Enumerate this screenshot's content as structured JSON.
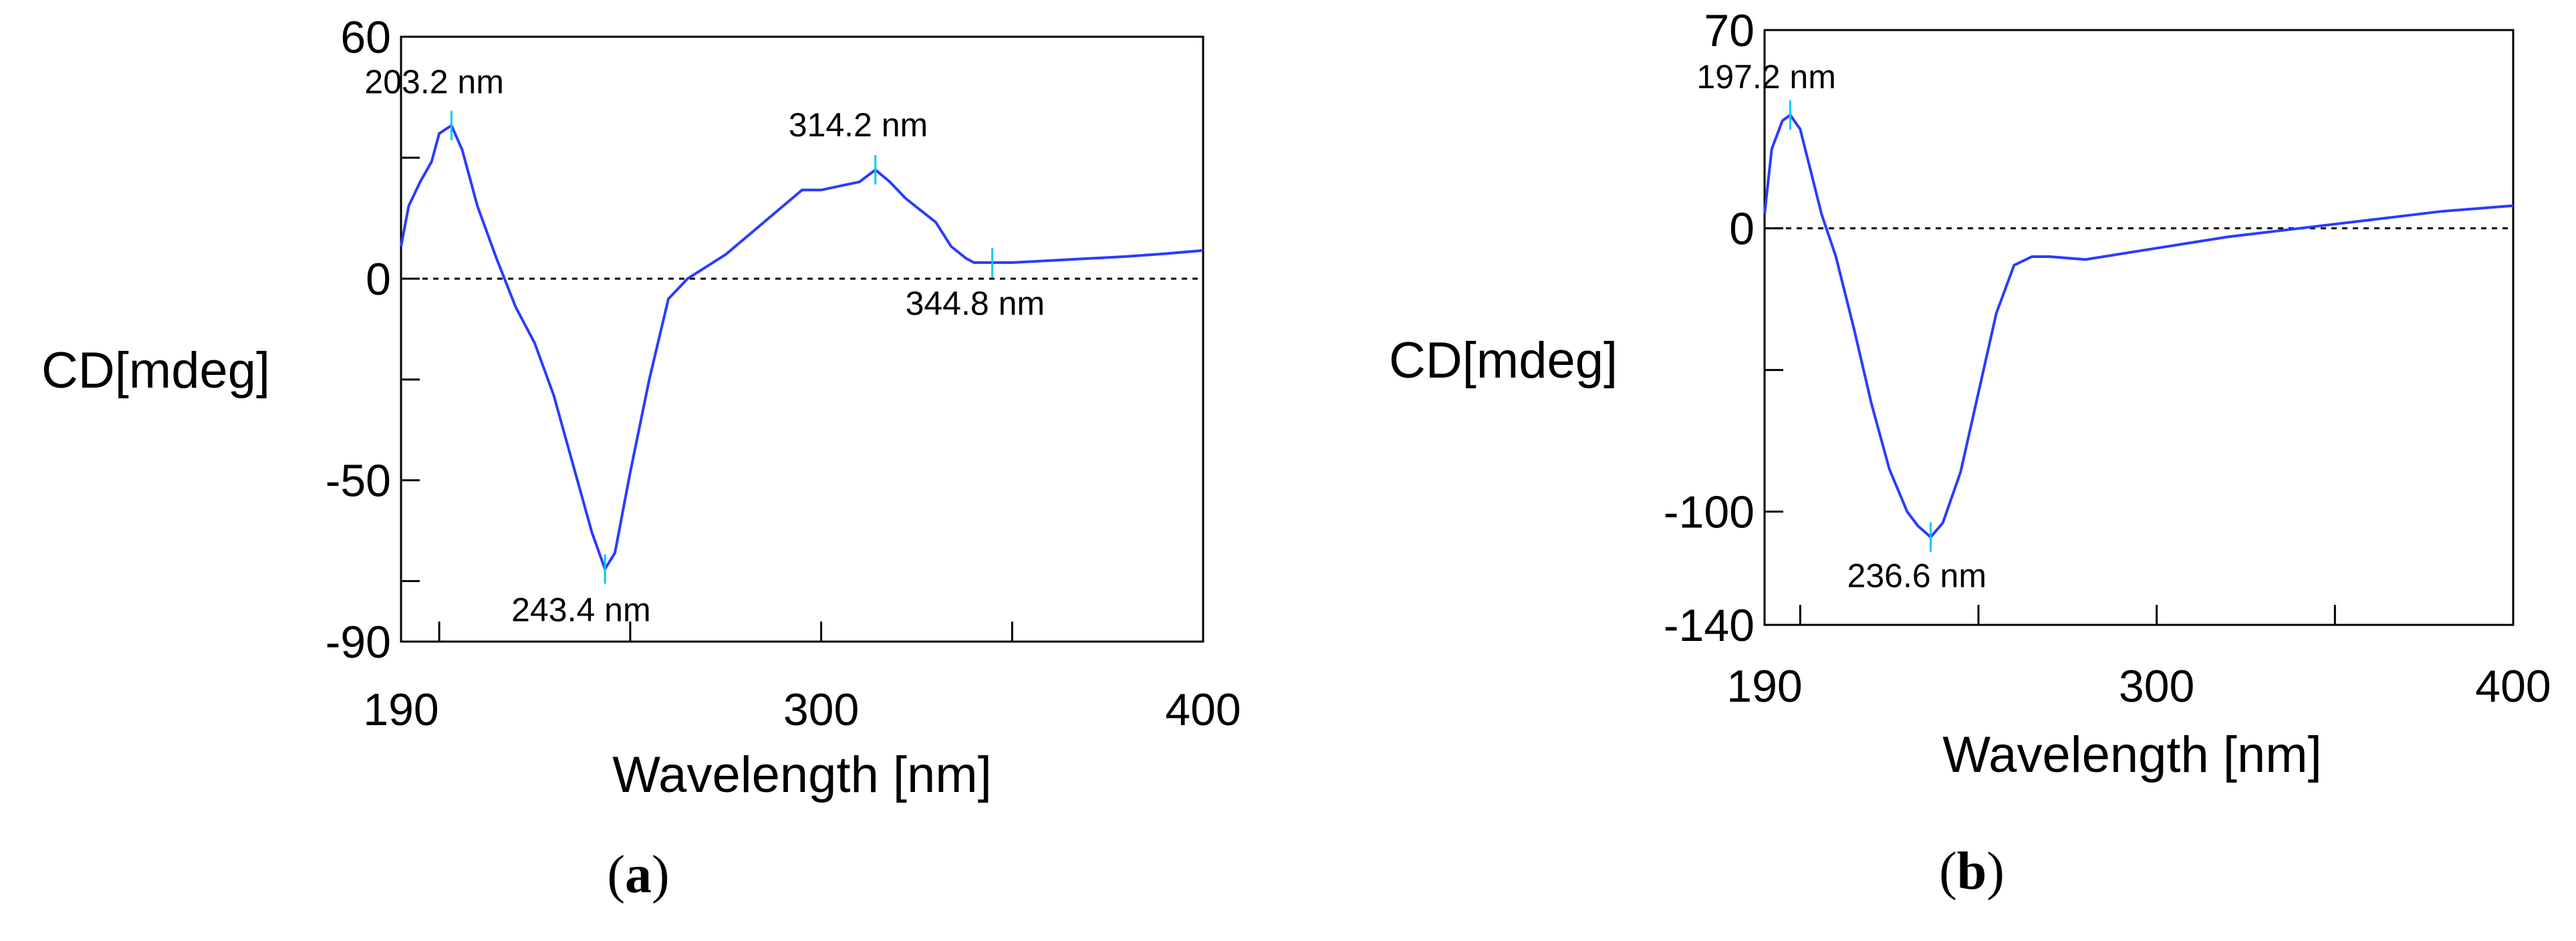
{
  "colors": {
    "curve": "#2b3bff",
    "marker": "#00c8ff",
    "axis": "#000000",
    "zero_line": "#000000"
  },
  "panels": [
    {
      "label": "(a)",
      "label_letter": "a",
      "ylabel": "CD[mdeg]",
      "xlabel": "Wavelength [nm]"
    },
    {
      "label": "(b)",
      "label_letter": "b",
      "ylabel": "CD[mdeg]",
      "xlabel": "Wavelength [nm]"
    }
  ],
  "chart_data": [
    {
      "type": "line",
      "title": "",
      "xlabel": "Wavelength [nm]",
      "ylabel": "CD[mdeg]",
      "xlim": [
        190,
        400
      ],
      "ylim": [
        -90,
        60
      ],
      "x_tick_labels": [
        "190",
        "300",
        "400"
      ],
      "x_minor_ticks": [
        200,
        250,
        350
      ],
      "y_tick_labels": [
        "60",
        "0",
        "-50",
        "-90"
      ],
      "y_tick_values": [
        60,
        0,
        -50,
        -90
      ],
      "y_minor_ticks": [
        -25,
        -75,
        30
      ],
      "zero_line": true,
      "grid": false,
      "series": [
        {
          "x": [
            190,
            192,
            195,
            198,
            200,
            203.2,
            206,
            210,
            215,
            220,
            225,
            230,
            235,
            240,
            243.4,
            246,
            250,
            255,
            260,
            265,
            270,
            275,
            280,
            285,
            290,
            295,
            300,
            305,
            310,
            314.2,
            318,
            322,
            326,
            330,
            334,
            338,
            340,
            344.8,
            350,
            360,
            370,
            380,
            390,
            400
          ],
          "y": [
            8,
            18,
            24,
            29,
            36,
            38,
            32,
            18,
            5,
            -7,
            -16,
            -29,
            -46,
            -63,
            -72,
            -68,
            -48,
            -25,
            -5,
            0,
            3,
            6,
            10,
            14,
            18,
            22,
            22,
            23,
            24,
            27,
            24,
            20,
            17,
            14,
            8,
            5,
            4,
            4,
            4,
            4.5,
            5,
            5.5,
            6.2,
            7
          ]
        }
      ],
      "annotations": [
        {
          "x": 203.2,
          "y": 38,
          "text": "203.2 nm"
        },
        {
          "x": 243.4,
          "y": -72,
          "text": "243.4 nm"
        },
        {
          "x": 314.2,
          "y": 27,
          "text": "314.2 nm"
        },
        {
          "x": 344.8,
          "y": 4,
          "text": "344.8 nm"
        }
      ]
    },
    {
      "type": "line",
      "title": "",
      "xlabel": "Wavelength [nm]",
      "ylabel": "CD[mdeg]",
      "xlim": [
        190,
        400
      ],
      "ylim": [
        -140,
        70
      ],
      "x_tick_labels": [
        "190",
        "300",
        "400"
      ],
      "x_minor_ticks": [
        200,
        250,
        350
      ],
      "y_tick_labels": [
        "70",
        "0",
        "-100",
        "-140"
      ],
      "y_tick_values": [
        70,
        0,
        -100,
        -140
      ],
      "y_minor_ticks": [
        -50
      ],
      "zero_line": true,
      "grid": false,
      "series": [
        {
          "x": [
            190,
            192,
            195,
            197.2,
            200,
            203,
            206,
            210,
            215,
            220,
            225,
            230,
            233,
            236.6,
            240,
            245,
            250,
            255,
            260,
            265,
            270,
            280,
            290,
            300,
            320,
            340,
            360,
            380,
            400
          ],
          "y": [
            5,
            28,
            38,
            40,
            35,
            20,
            5,
            -10,
            -35,
            -62,
            -85,
            -100,
            -105,
            -109,
            -104,
            -86,
            -58,
            -30,
            -13,
            -10,
            -10,
            -11,
            -9,
            -7,
            -3,
            0,
            3,
            6,
            8
          ]
        }
      ],
      "annotations": [
        {
          "x": 197.2,
          "y": 40,
          "text": "197.2 nm"
        },
        {
          "x": 236.6,
          "y": -109,
          "text": "236.6 nm"
        }
      ]
    }
  ]
}
